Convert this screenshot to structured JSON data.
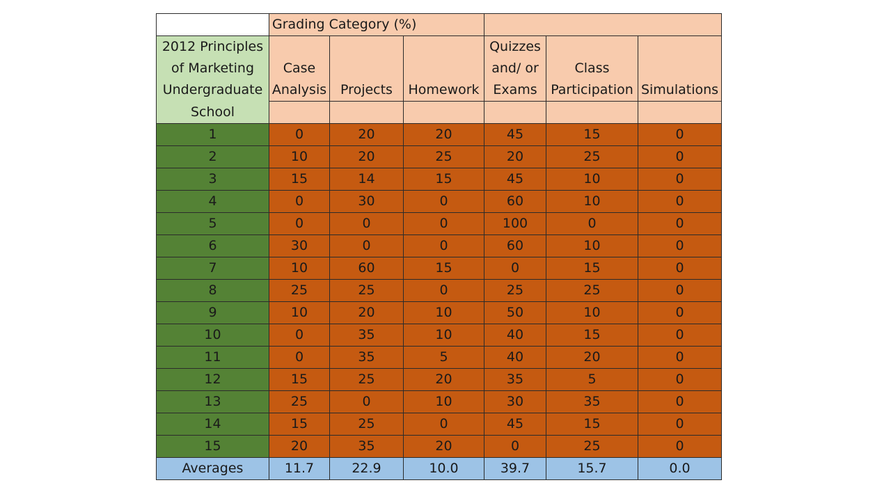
{
  "chart_data": {
    "type": "table",
    "title": "Grading Category (%)",
    "row_header_label": [
      "2012 Principles",
      "of Marketing",
      "Undergraduate",
      "School"
    ],
    "columns": [
      [
        "",
        "Case",
        "Analysis"
      ],
      [
        "",
        "",
        "Projects"
      ],
      [
        "",
        "",
        "Homework"
      ],
      [
        "Quizzes",
        "and/ or",
        "Exams"
      ],
      [
        "",
        "Class",
        "Participation"
      ],
      [
        "",
        "",
        "Simulations"
      ]
    ],
    "rows": [
      {
        "school": "1",
        "values": [
          "0",
          "20",
          "20",
          "45",
          "15",
          "0"
        ]
      },
      {
        "school": "2",
        "values": [
          "10",
          "20",
          "25",
          "20",
          "25",
          "0"
        ]
      },
      {
        "school": "3",
        "values": [
          "15",
          "14",
          "15",
          "45",
          "10",
          "0"
        ]
      },
      {
        "school": "4",
        "values": [
          "0",
          "30",
          "0",
          "60",
          "10",
          "0"
        ]
      },
      {
        "school": "5",
        "values": [
          "0",
          "0",
          "0",
          "100",
          "0",
          "0"
        ]
      },
      {
        "school": "6",
        "values": [
          "30",
          "0",
          "0",
          "60",
          "10",
          "0"
        ]
      },
      {
        "school": "7",
        "values": [
          "10",
          "60",
          "15",
          "0",
          "15",
          "0"
        ]
      },
      {
        "school": "8",
        "values": [
          "25",
          "25",
          "0",
          "25",
          "25",
          "0"
        ]
      },
      {
        "school": "9",
        "values": [
          "10",
          "20",
          "10",
          "50",
          "10",
          "0"
        ]
      },
      {
        "school": "10",
        "values": [
          "0",
          "35",
          "10",
          "40",
          "15",
          "0"
        ]
      },
      {
        "school": "11",
        "values": [
          "0",
          "35",
          "5",
          "40",
          "20",
          "0"
        ]
      },
      {
        "school": "12",
        "values": [
          "15",
          "25",
          "20",
          "35",
          "5",
          "0"
        ]
      },
      {
        "school": "13",
        "values": [
          "25",
          "0",
          "10",
          "30",
          "35",
          "0"
        ]
      },
      {
        "school": "14",
        "values": [
          "15",
          "25",
          "0",
          "45",
          "15",
          "0"
        ]
      },
      {
        "school": "15",
        "values": [
          "20",
          "35",
          "20",
          "0",
          "25",
          "0"
        ]
      }
    ],
    "averages": {
      "label": "Averages",
      "values": [
        "11.7",
        "22.9",
        "10.0",
        "39.7",
        "15.7",
        "0.0"
      ]
    }
  }
}
